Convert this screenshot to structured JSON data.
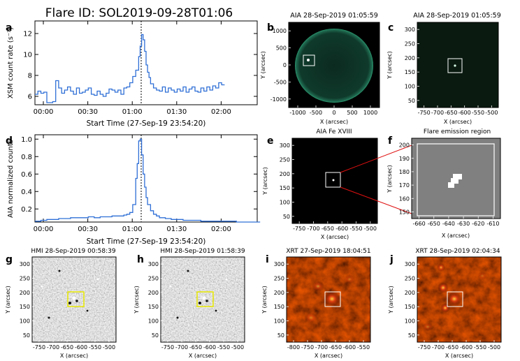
{
  "figure_title": "Flare ID: SOL2019-09-28T01:06",
  "colors": {
    "series": "#2f6fd6",
    "axis": "#000000",
    "box_white": "#ffffff",
    "box_yellow": "#e8e800",
    "zoom_red": "#e01010"
  },
  "panels": {
    "a": {
      "letter": "a",
      "ylabel": "XSM count rate (s⁻¹)",
      "xlabel": "Start Time (27-Sep-19 23:54:20)"
    },
    "d": {
      "letter": "d",
      "ylabel": "AIA normalized counts",
      "xlabel": "Start Time (27-Sep-19 23:54:20)"
    },
    "b": {
      "letter": "b",
      "title": "AIA 28-Sep-2019 01:05:59",
      "xlabel": "X (arcsec)",
      "ylabel": "Y (arcsec)",
      "xticks": [
        "-1000",
        "-500",
        "0",
        "500",
        "1000"
      ],
      "yticks": [
        "1000",
        "500",
        "0",
        "-500",
        "-1000"
      ]
    },
    "c": {
      "letter": "c",
      "title": "AIA 28-Sep-2019 01:05:59",
      "xlabel": "X (arcsec)",
      "ylabel": "Y (arcsec)",
      "xticks": [
        "-750",
        "-700",
        "-650",
        "-600",
        "-550",
        "-500"
      ],
      "yticks": [
        "300",
        "250",
        "200",
        "150",
        "100",
        "50"
      ]
    },
    "e": {
      "letter": "e",
      "title": "AIA Fe XVIII",
      "xlabel": "X (arcsec)",
      "ylabel": "Y (arcsec)",
      "xticks": [
        "-750",
        "-700",
        "-650",
        "-600",
        "-550",
        "-500"
      ],
      "yticks": [
        "300",
        "250",
        "200",
        "150",
        "100",
        "50"
      ]
    },
    "f": {
      "letter": "f",
      "title": "Flare emission region",
      "xlabel": "X (arcsec)",
      "ylabel": "Y (arcsec)",
      "xticks": [
        "-660",
        "-650",
        "-640",
        "-630",
        "-620",
        "-610"
      ],
      "yticks": [
        "200",
        "190",
        "180",
        "170",
        "160",
        "150"
      ]
    },
    "g": {
      "letter": "g",
      "title": "HMI 28-Sep-2019 00:58:39",
      "xlabel": "X (arcsec)",
      "ylabel": "Y (arcsec)",
      "xticks": [
        "-750",
        "-700",
        "-650",
        "-600",
        "-550",
        "-500"
      ],
      "yticks": [
        "300",
        "250",
        "200",
        "150",
        "100",
        "50"
      ]
    },
    "h": {
      "letter": "h",
      "title": "HMI 28-Sep-2019 01:58:39",
      "xlabel": "X (arcsec)",
      "ylabel": "Y (arcsec)",
      "xticks": [
        "-750",
        "-700",
        "-650",
        "-600",
        "-550",
        "-500"
      ],
      "yticks": [
        "300",
        "250",
        "200",
        "150",
        "100",
        "50"
      ]
    },
    "i": {
      "letter": "i",
      "title": "XRT 27-Sep-2019 18:04:51",
      "xlabel": "X (arcsec)",
      "ylabel": "Y (arcsec)",
      "xticks": [
        "-800",
        "-750",
        "-700",
        "-650",
        "-600",
        "-550"
      ],
      "yticks": [
        "300",
        "250",
        "200",
        "150",
        "100",
        "50"
      ]
    },
    "j": {
      "letter": "j",
      "title": "XRT 28-Sep-2019 02:04:34",
      "xlabel": "X (arcsec)",
      "ylabel": "Y (arcsec)",
      "xticks": [
        "-750",
        "-700",
        "-650",
        "-600",
        "-550",
        "-500"
      ],
      "yticks": [
        "300",
        "250",
        "200",
        "150",
        "100",
        "50"
      ]
    }
  },
  "chart_data": [
    {
      "panel": "a",
      "type": "line",
      "step": true,
      "x_ticks": [
        "00:00",
        "00:30",
        "01:00",
        "01:30",
        "02:00"
      ],
      "x_tick_minutes": [
        5.67,
        35.67,
        65.67,
        95.67,
        125.67
      ],
      "xlim": [
        0,
        150
      ],
      "ylim": [
        5.2,
        13.2
      ],
      "y_ticks": [
        6,
        8,
        10,
        12
      ],
      "flare_marker_minute": 71.7,
      "x": [
        0,
        2,
        4,
        6,
        8,
        10,
        12,
        14,
        16,
        18,
        20,
        22,
        24,
        26,
        28,
        30,
        32,
        34,
        36,
        38,
        40,
        42,
        44,
        46,
        48,
        50,
        52,
        54,
        56,
        58,
        60,
        62,
        64,
        66,
        68,
        70,
        71,
        72,
        73,
        74,
        75,
        76,
        77,
        78,
        80,
        82,
        84,
        86,
        88,
        90,
        92,
        94,
        96,
        98,
        100,
        102,
        104,
        106,
        108,
        110,
        112,
        114,
        116,
        118,
        120,
        122,
        124,
        126
      ],
      "y": [
        6.2,
        6.5,
        6.3,
        6.4,
        5.4,
        5.4,
        5.5,
        7.5,
        6.8,
        6.3,
        6.6,
        6.9,
        6.5,
        6.2,
        6.8,
        6.3,
        6.4,
        6.6,
        6.8,
        6.2,
        6.1,
        6.5,
        6.2,
        6.0,
        6.3,
        6.7,
        6.6,
        6.4,
        6.6,
        6.2,
        6.8,
        6.9,
        7.3,
        7.9,
        8.5,
        9.8,
        10.8,
        11.9,
        11.4,
        10.3,
        9.0,
        8.3,
        7.8,
        7.2,
        6.8,
        6.6,
        6.5,
        6.9,
        6.4,
        6.8,
        6.6,
        6.4,
        6.7,
        6.5,
        6.9,
        6.4,
        6.7,
        6.9,
        6.5,
        6.4,
        6.8,
        6.5,
        6.9,
        6.6,
        7.0,
        6.8,
        7.3,
        7.1
      ]
    },
    {
      "panel": "d",
      "type": "line",
      "step": true,
      "x_ticks": [
        "00:00",
        "00:30",
        "01:00",
        "01:30",
        "02:00"
      ],
      "x_tick_minutes": [
        5.67,
        35.67,
        65.67,
        95.67,
        125.67
      ],
      "xlim": [
        0,
        150
      ],
      "ylim": [
        0.05,
        1.05
      ],
      "y_ticks": [
        0.2,
        0.4,
        0.6,
        0.8,
        1.0
      ],
      "y_tick_labels": [
        "0.2",
        "0.4",
        "0.6",
        "0.8",
        "1.0"
      ],
      "flare_marker_minute": 71.7,
      "x": [
        0,
        4,
        8,
        12,
        16,
        20,
        24,
        28,
        32,
        36,
        40,
        44,
        48,
        52,
        56,
        60,
        62,
        64,
        66,
        68,
        69,
        70,
        71,
        72,
        73,
        74,
        75,
        76,
        78,
        80,
        82,
        84,
        88,
        92,
        96,
        100,
        104,
        108,
        112,
        116,
        120,
        124,
        128,
        132,
        136,
        140,
        144,
        148
      ],
      "y": [
        0.06,
        0.07,
        0.08,
        0.08,
        0.09,
        0.09,
        0.1,
        0.1,
        0.1,
        0.11,
        0.1,
        0.11,
        0.11,
        0.12,
        0.12,
        0.13,
        0.14,
        0.16,
        0.25,
        0.55,
        0.72,
        0.98,
        1.0,
        0.82,
        0.6,
        0.45,
        0.33,
        0.25,
        0.18,
        0.14,
        0.12,
        0.1,
        0.09,
        0.08,
        0.08,
        0.07,
        0.07,
        0.07,
        0.06,
        0.06,
        0.06,
        0.06,
        0.06,
        0.06,
        0.05,
        0.05,
        0.05,
        0.05
      ]
    }
  ]
}
